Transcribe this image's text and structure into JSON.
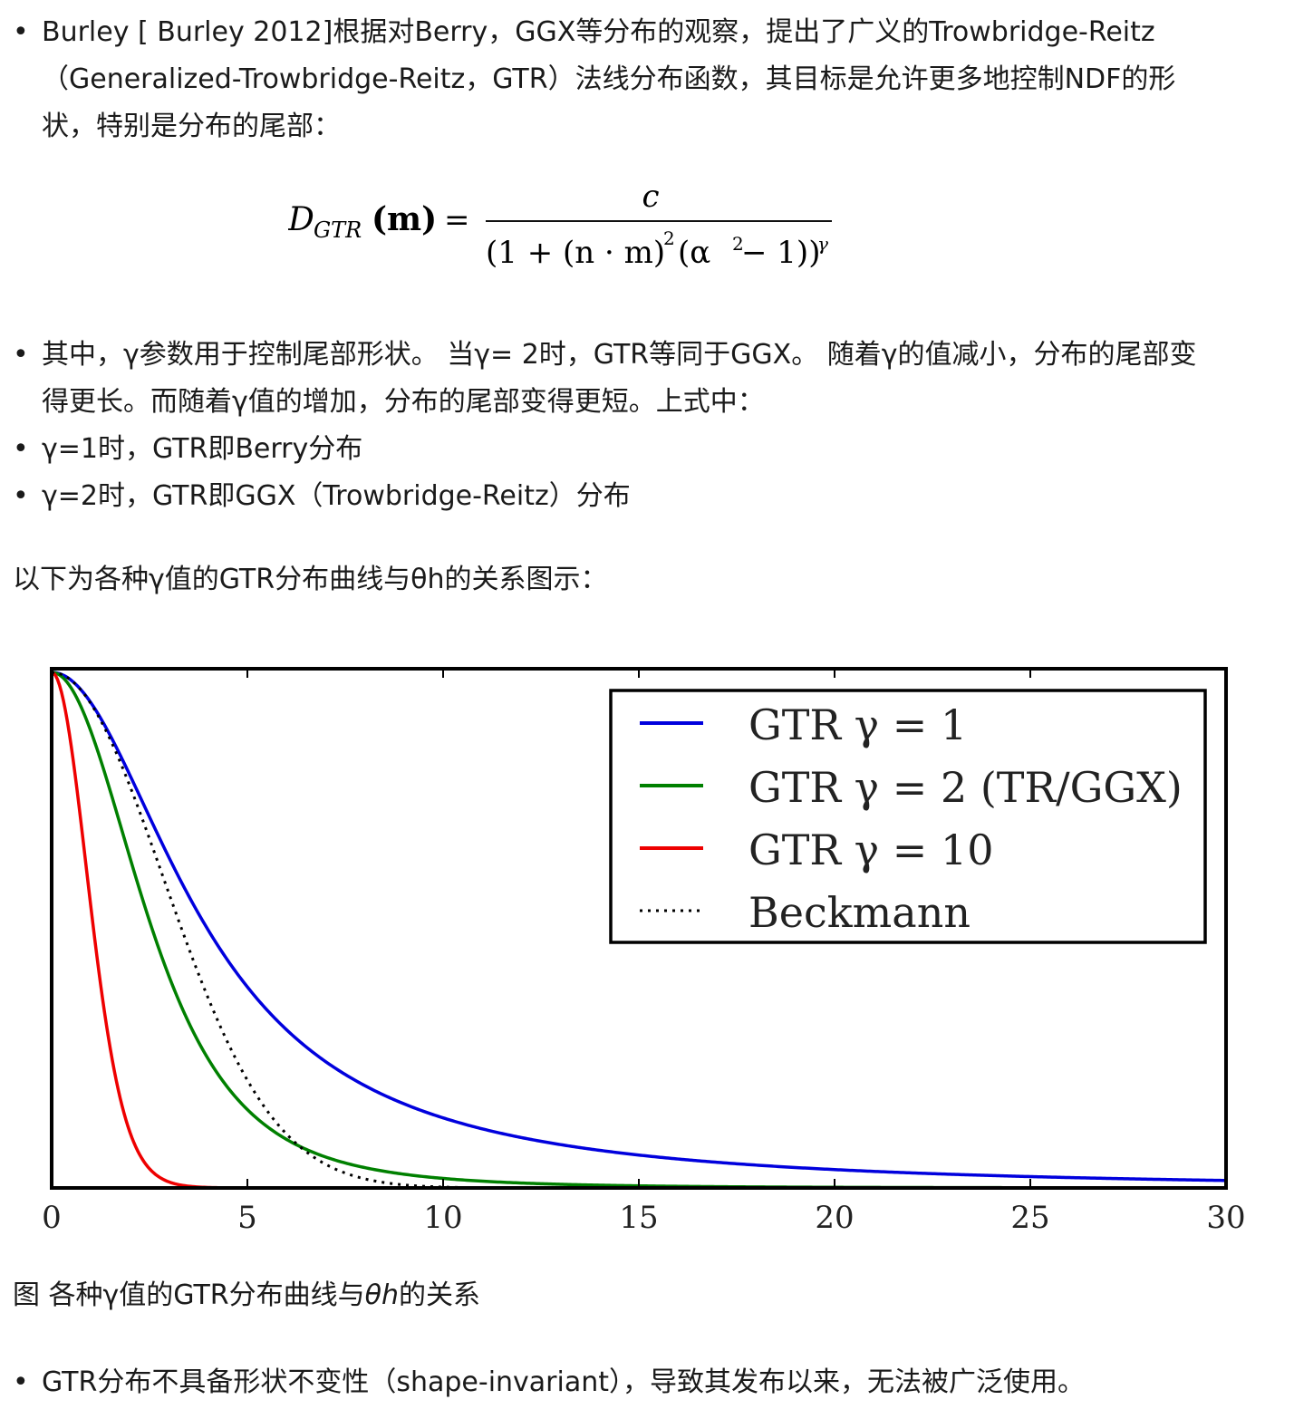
{
  "bullets_top": [
    {
      "lines": [
        "Burley [ Burley 2012]根据对Berry，GGX等分布的观察，提出了广义的Trowbridge-Reitz",
        "（Generalized-Trowbridge-Reitz，GTR）法线分布函数，其目标是允许更多地控制NDF的形",
        "状，特别是分布的尾部："
      ]
    }
  ],
  "formula": {
    "lhs_main": "D",
    "lhs_sub": "GTR",
    "lhs_arg": "(m)",
    "equals": "=",
    "numerator": "c",
    "den_part1": "(1 + (n · m)",
    "den_sq": "2",
    "den_part2": "(α",
    "den_sq2": "2",
    "den_part3": " − 1))",
    "den_exp": "γ"
  },
  "bullets_mid": [
    {
      "lines": [
        "其中，γ参数用于控制尾部形状。 当γ= 2时，GTR等同于GGX。 随着γ的值减小，分布的尾部变",
        "得更长。而随着γ值的增加，分布的尾部变得更短。上式中："
      ]
    },
    {
      "lines": [
        "γ=1时，GTR即Berry分布"
      ]
    },
    {
      "lines": [
        "γ=2时，GTR即GGX（Trowbridge-Reitz）分布"
      ]
    }
  ],
  "intro_text": "以下为各种γ值的GTR分布曲线与θh的关系图示：",
  "caption_prefix": "图 各种γ值的GTR分布曲线与",
  "caption_var": "θh",
  "caption_suffix": "的关系",
  "bullet_bottom": "GTR分布不具备形状不变性（shape-invariant），导致其发布以来，无法被广泛使用。",
  "chart_data": {
    "type": "line",
    "xlim": [
      0,
      30
    ],
    "ylim": [
      0,
      1
    ],
    "xticks": [
      0,
      5,
      10,
      15,
      20,
      25,
      30
    ],
    "xtick_labels": [
      "0",
      "5",
      "10",
      "15",
      "20",
      "25",
      "30"
    ],
    "legend_position": "top-right",
    "grid": false,
    "alpha_deg": 4,
    "series": [
      {
        "name": "GTR γ = 1",
        "gamma": 1,
        "color": "#0000dd",
        "style": "solid"
      },
      {
        "name": "GTR γ = 2 (TR/GGX)",
        "gamma": 2,
        "color": "#008000",
        "style": "solid"
      },
      {
        "name": "GTR γ = 10",
        "gamma": 10,
        "color": "#ee0000",
        "style": "solid"
      },
      {
        "name": "Beckmann",
        "gamma": null,
        "color": "#000000",
        "style": "dotted"
      }
    ]
  }
}
